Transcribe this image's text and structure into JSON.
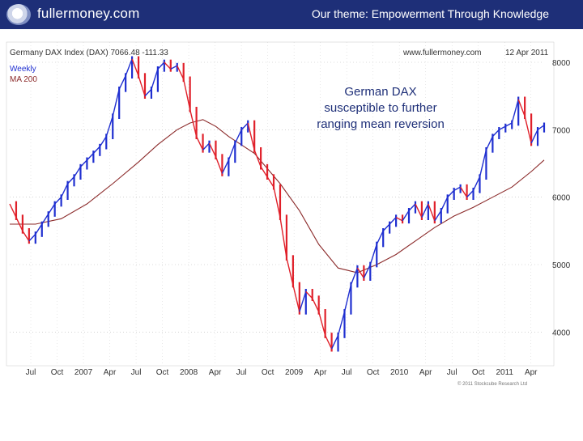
{
  "header": {
    "brand": "fullermoney.com",
    "theme": "Our theme: Empowerment Through Knowledge",
    "background": "#1e2f78"
  },
  "chart_meta": {
    "title": "Germany DAX Index (DAX) 7066.48 -111.33",
    "source": "www.fullermoney.com",
    "date": "12 Apr 2011",
    "series_label_1": "Weekly",
    "series_label_2": "MA 200",
    "annotation": [
      "German DAX",
      "susceptible to further",
      "ranging mean reversion"
    ],
    "copyright": "© 2011 Stockcube Research Ltd"
  },
  "chart_data": {
    "type": "line",
    "title": "Germany DAX Index (DAX) 7066.48 -111.33",
    "x_tick_labels": [
      "Jul",
      "Oct",
      "2007",
      "Apr",
      "Jul",
      "Oct",
      "2008",
      "Apr",
      "Jul",
      "Oct",
      "2009",
      "Apr",
      "Jul",
      "Oct",
      "2010",
      "Apr",
      "Jul",
      "Oct",
      "2011",
      "Apr"
    ],
    "y_tick_labels": [
      "8000",
      "7000",
      "6000",
      "5000",
      "4000"
    ],
    "ylim": [
      3500,
      8300
    ],
    "grid": true,
    "series": [
      {
        "name": "Weekly",
        "color_up": "#1f2fd0",
        "color_down": "#e0202a",
        "points": [
          [
            0.0,
            5900
          ],
          [
            0.5,
            5700
          ],
          [
            1.0,
            5500
          ],
          [
            1.5,
            5350
          ],
          [
            2.0,
            5450
          ],
          [
            2.5,
            5600
          ],
          [
            3.0,
            5750
          ],
          [
            3.5,
            5900
          ],
          [
            4.0,
            6000
          ],
          [
            4.5,
            6200
          ],
          [
            5.0,
            6300
          ],
          [
            5.5,
            6450
          ],
          [
            6.0,
            6550
          ],
          [
            6.5,
            6650
          ],
          [
            7.0,
            6750
          ],
          [
            7.5,
            6900
          ],
          [
            8.0,
            7200
          ],
          [
            8.5,
            7600
          ],
          [
            9.0,
            7800
          ],
          [
            9.5,
            8050
          ],
          [
            10.0,
            7800
          ],
          [
            10.5,
            7500
          ],
          [
            11.0,
            7600
          ],
          [
            11.5,
            7900
          ],
          [
            12.0,
            8000
          ],
          [
            12.5,
            7900
          ],
          [
            13.0,
            7950
          ],
          [
            13.5,
            7750
          ],
          [
            14.0,
            7300
          ],
          [
            14.5,
            6900
          ],
          [
            15.0,
            6700
          ],
          [
            15.5,
            6800
          ],
          [
            16.0,
            6600
          ],
          [
            16.5,
            6350
          ],
          [
            17.0,
            6550
          ],
          [
            17.5,
            6800
          ],
          [
            18.0,
            7000
          ],
          [
            18.5,
            7100
          ],
          [
            19.0,
            6700
          ],
          [
            19.5,
            6450
          ],
          [
            20.0,
            6300
          ],
          [
            20.5,
            6150
          ],
          [
            21.0,
            5700
          ],
          [
            21.5,
            5100
          ],
          [
            22.0,
            4700
          ],
          [
            22.5,
            4300
          ],
          [
            23.0,
            4600
          ],
          [
            23.5,
            4500
          ],
          [
            24.0,
            4300
          ],
          [
            24.5,
            3950
          ],
          [
            25.0,
            3750
          ],
          [
            25.5,
            3950
          ],
          [
            26.0,
            4300
          ],
          [
            26.5,
            4700
          ],
          [
            27.0,
            4950
          ],
          [
            27.5,
            4800
          ],
          [
            28.0,
            5000
          ],
          [
            28.5,
            5300
          ],
          [
            29.0,
            5500
          ],
          [
            29.5,
            5600
          ],
          [
            30.0,
            5700
          ],
          [
            30.5,
            5650
          ],
          [
            31.0,
            5800
          ],
          [
            31.5,
            5900
          ],
          [
            32.0,
            5700
          ],
          [
            32.5,
            5900
          ],
          [
            33.0,
            5650
          ],
          [
            33.5,
            5800
          ],
          [
            34.0,
            6000
          ],
          [
            34.5,
            6100
          ],
          [
            35.0,
            6150
          ],
          [
            35.5,
            6000
          ],
          [
            36.0,
            6100
          ],
          [
            36.5,
            6300
          ],
          [
            37.0,
            6700
          ],
          [
            37.5,
            6900
          ],
          [
            38.0,
            7000
          ],
          [
            38.5,
            7050
          ],
          [
            39.0,
            7100
          ],
          [
            39.5,
            7450
          ],
          [
            40.0,
            7200
          ],
          [
            40.5,
            6800
          ],
          [
            41.0,
            7000
          ],
          [
            41.5,
            7066
          ]
        ]
      },
      {
        "name": "MA 200",
        "color": "#8b2a2a",
        "points": [
          [
            0.0,
            5600
          ],
          [
            2.0,
            5600
          ],
          [
            4.0,
            5680
          ],
          [
            6.0,
            5900
          ],
          [
            8.0,
            6200
          ],
          [
            10.0,
            6520
          ],
          [
            11.5,
            6780
          ],
          [
            13.0,
            7000
          ],
          [
            14.0,
            7100
          ],
          [
            15.0,
            7150
          ],
          [
            16.0,
            7050
          ],
          [
            17.0,
            6900
          ],
          [
            19.0,
            6650
          ],
          [
            21.0,
            6200
          ],
          [
            22.5,
            5800
          ],
          [
            24.0,
            5300
          ],
          [
            25.5,
            4950
          ],
          [
            27.0,
            4880
          ],
          [
            28.5,
            5000
          ],
          [
            30.0,
            5150
          ],
          [
            31.5,
            5350
          ],
          [
            33.0,
            5550
          ],
          [
            34.5,
            5720
          ],
          [
            36.0,
            5850
          ],
          [
            37.5,
            6000
          ],
          [
            39.0,
            6150
          ],
          [
            40.5,
            6380
          ],
          [
            41.5,
            6550
          ]
        ]
      }
    ]
  }
}
